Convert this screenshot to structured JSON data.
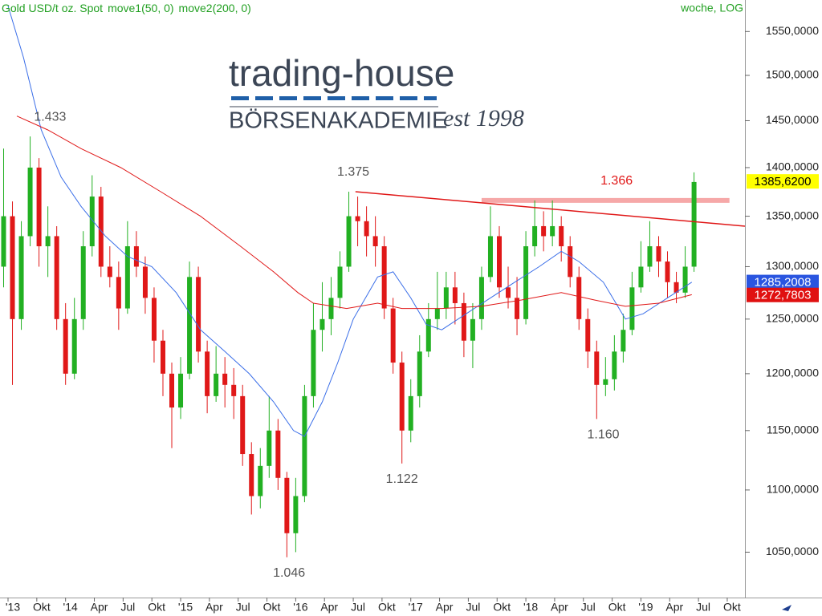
{
  "chart_data": {
    "type": "candlestick",
    "title": "Gold USD/t oz. Spot",
    "indicators": [
      "move1(50, 0)",
      "move2(200, 0)"
    ],
    "interval_label": "woche, LOG",
    "log_scale": true,
    "up_color": "#22b022",
    "down_color": "#e01818",
    "ylim": [
      1018,
      1587
    ],
    "yticks": [
      {
        "value": 1050,
        "label": "1050,0000"
      },
      {
        "value": 1100,
        "label": "1100,0000"
      },
      {
        "value": 1150,
        "label": "1150,0000"
      },
      {
        "value": 1200,
        "label": "1200,0000"
      },
      {
        "value": 1250,
        "label": "1250,0000"
      },
      {
        "value": 1300,
        "label": "1300,0000"
      },
      {
        "value": 1350,
        "label": "1350,0000"
      },
      {
        "value": 1400,
        "label": "1400,0000"
      },
      {
        "value": 1450,
        "label": "1450,0000"
      },
      {
        "value": 1500,
        "label": "1500,0000"
      },
      {
        "value": 1550,
        "label": "1550,0000"
      }
    ],
    "xlim": [
      -3.63,
      333
    ],
    "xticks": [
      {
        "value": 0,
        "label": "'13"
      },
      {
        "value": 13,
        "label": "Okt"
      },
      {
        "value": 26,
        "label": "'14"
      },
      {
        "value": 39,
        "label": "Apr"
      },
      {
        "value": 52,
        "label": "Jul"
      },
      {
        "value": 65,
        "label": "Okt"
      },
      {
        "value": 78,
        "label": "'15"
      },
      {
        "value": 91,
        "label": "Apr"
      },
      {
        "value": 104,
        "label": "Jul"
      },
      {
        "value": 117,
        "label": "Okt"
      },
      {
        "value": 130,
        "label": "'16"
      },
      {
        "value": 143,
        "label": "Apr"
      },
      {
        "value": 156,
        "label": "Jul"
      },
      {
        "value": 169,
        "label": "Okt"
      },
      {
        "value": 182,
        "label": "'17"
      },
      {
        "value": 195,
        "label": "Apr"
      },
      {
        "value": 208,
        "label": "Jul"
      },
      {
        "value": 221,
        "label": "Okt"
      },
      {
        "value": 234,
        "label": "'18"
      },
      {
        "value": 247,
        "label": "Apr"
      },
      {
        "value": 260,
        "label": "Jul"
      },
      {
        "value": 273,
        "label": "Okt"
      },
      {
        "value": 286,
        "label": "'19"
      },
      {
        "value": 299,
        "label": "Apr"
      },
      {
        "value": 312,
        "label": "Jul"
      },
      {
        "value": 325,
        "label": "Okt"
      }
    ],
    "x": [
      -2,
      2,
      6,
      10,
      14,
      18,
      22,
      26,
      30,
      34,
      38,
      42,
      46,
      50,
      54,
      58,
      62,
      66,
      70,
      74,
      78,
      82,
      86,
      90,
      94,
      98,
      102,
      106,
      110,
      114,
      118,
      122,
      126,
      130,
      134,
      138,
      142,
      146,
      150,
      154,
      158,
      162,
      166,
      170,
      174,
      178,
      182,
      186,
      190,
      194,
      198,
      202,
      206,
      210,
      214,
      218,
      222,
      226,
      230,
      234,
      238,
      242,
      246,
      250,
      254,
      258,
      262,
      266,
      270,
      274,
      278,
      282,
      286,
      290,
      294,
      298,
      302,
      306,
      310
    ],
    "open": [
      1300,
      1350,
      1250,
      1330,
      1400,
      1320,
      1330,
      1250,
      1200,
      1250,
      1320,
      1370,
      1300,
      1290,
      1260,
      1320,
      1300,
      1270,
      1230,
      1200,
      1170,
      1200,
      1290,
      1220,
      1180,
      1200,
      1190,
      1180,
      1130,
      1095,
      1120,
      1150,
      1110,
      1065,
      1095,
      1180,
      1240,
      1250,
      1270,
      1300,
      1350,
      1345,
      1330,
      1320,
      1260,
      1210,
      1150,
      1180,
      1220,
      1250,
      1260,
      1280,
      1265,
      1230,
      1250,
      1290,
      1330,
      1280,
      1270,
      1250,
      1320,
      1340,
      1330,
      1340,
      1320,
      1290,
      1250,
      1220,
      1190,
      1195,
      1220,
      1240,
      1280,
      1300,
      1320,
      1305,
      1285,
      1275,
      1300
    ],
    "high": [
      1420,
      1365,
      1345,
      1433,
      1410,
      1360,
      1340,
      1265,
      1270,
      1335,
      1392,
      1380,
      1320,
      1305,
      1345,
      1335,
      1310,
      1280,
      1240,
      1210,
      1215,
      1305,
      1300,
      1230,
      1225,
      1215,
      1205,
      1190,
      1140,
      1135,
      1180,
      1160,
      1115,
      1110,
      1190,
      1265,
      1285,
      1290,
      1315,
      1375,
      1370,
      1360,
      1350,
      1330,
      1270,
      1220,
      1195,
      1235,
      1265,
      1295,
      1295,
      1295,
      1275,
      1265,
      1300,
      1360,
      1340,
      1300,
      1290,
      1335,
      1366,
      1355,
      1366,
      1350,
      1330,
      1300,
      1260,
      1230,
      1215,
      1235,
      1255,
      1295,
      1325,
      1345,
      1330,
      1315,
      1295,
      1320,
      1395
    ],
    "low": [
      1280,
      1190,
      1240,
      1320,
      1300,
      1290,
      1240,
      1190,
      1195,
      1240,
      1310,
      1290,
      1280,
      1240,
      1255,
      1290,
      1255,
      1210,
      1180,
      1135,
      1160,
      1195,
      1210,
      1165,
      1175,
      1170,
      1160,
      1120,
      1080,
      1085,
      1110,
      1100,
      1046,
      1050,
      1090,
      1170,
      1220,
      1235,
      1260,
      1295,
      1320,
      1310,
      1300,
      1250,
      1200,
      1122,
      1140,
      1170,
      1215,
      1240,
      1250,
      1245,
      1215,
      1205,
      1240,
      1285,
      1270,
      1260,
      1235,
      1245,
      1310,
      1315,
      1320,
      1305,
      1280,
      1240,
      1205,
      1160,
      1180,
      1185,
      1210,
      1235,
      1275,
      1295,
      1290,
      1270,
      1265,
      1270,
      1295
    ],
    "close": [
      1350,
      1250,
      1330,
      1400,
      1320,
      1330,
      1250,
      1200,
      1250,
      1320,
      1370,
      1300,
      1290,
      1260,
      1320,
      1300,
      1270,
      1230,
      1200,
      1170,
      1200,
      1290,
      1220,
      1180,
      1200,
      1190,
      1180,
      1130,
      1095,
      1120,
      1150,
      1110,
      1065,
      1095,
      1180,
      1240,
      1250,
      1270,
      1300,
      1350,
      1345,
      1330,
      1320,
      1260,
      1210,
      1150,
      1180,
      1220,
      1250,
      1260,
      1280,
      1265,
      1230,
      1250,
      1290,
      1330,
      1280,
      1270,
      1250,
      1320,
      1340,
      1330,
      1340,
      1320,
      1290,
      1250,
      1220,
      1190,
      1195,
      1220,
      1240,
      1280,
      1300,
      1320,
      1305,
      1285,
      1275,
      1300,
      1385
    ],
    "lines": [
      {
        "name": "move1(50, 0)",
        "color": "#3a6ee8",
        "x": [
          0,
          7,
          15,
          24,
          33,
          44,
          54,
          65,
          76,
          87,
          98,
          109,
          120,
          129,
          134,
          142,
          149,
          156,
          167,
          174,
          182,
          189,
          196,
          207,
          218,
          229,
          240,
          250,
          258,
          269,
          279,
          287,
          298,
          309
        ],
        "values": [
          1580,
          1520,
          1440,
          1390,
          1360,
          1330,
          1310,
          1300,
          1275,
          1240,
          1220,
          1200,
          1175,
          1150,
          1145,
          1175,
          1210,
          1250,
          1290,
          1295,
          1270,
          1245,
          1240,
          1255,
          1270,
          1285,
          1300,
          1315,
          1305,
          1285,
          1250,
          1255,
          1270,
          1285
        ]
      },
      {
        "name": "move2(200, 0)",
        "color": "#e01818",
        "x": [
          4,
          18,
          33,
          51,
          69,
          87,
          105,
          120,
          131,
          138,
          153,
          167,
          178,
          196,
          214,
          232,
          250,
          265,
          279,
          294,
          309
        ],
        "values": [
          1455,
          1440,
          1420,
          1400,
          1375,
          1350,
          1320,
          1295,
          1275,
          1265,
          1260,
          1265,
          1260,
          1260,
          1262,
          1268,
          1275,
          1268,
          1262,
          1265,
          1273
        ]
      }
    ],
    "trendline": {
      "x": [
        157,
        333
      ],
      "values": [
        1375,
        1340
      ],
      "color": "#e01818"
    },
    "level": {
      "x": [
        214,
        326
      ],
      "value": 1366,
      "color": "#f6a8a8"
    },
    "annotations": [
      {
        "label": "1.433",
        "value": 1433,
        "x": 19,
        "position": "above"
      },
      {
        "label": "1.375",
        "value": 1375,
        "x": 156,
        "position": "above"
      },
      {
        "label": "1.366",
        "value": 1366,
        "x": 275,
        "position": "above",
        "color": "#e01818"
      },
      {
        "label": "1.046",
        "value": 1046,
        "x": 127,
        "position": "below"
      },
      {
        "label": "1.122",
        "value": 1122,
        "x": 178,
        "position": "below"
      },
      {
        "label": "1.160",
        "value": 1160,
        "x": 269,
        "position": "below"
      }
    ],
    "last_values": [
      {
        "value": 1385.62,
        "label": "1385,6200",
        "color": "#ffff00",
        "text_color": "#000000"
      },
      {
        "value": 1285.2008,
        "label": "1285,2008",
        "color": "#2a55e0",
        "text_color": "#ffffff"
      },
      {
        "value": 1272.7803,
        "label": "1272,7803",
        "color": "#e01010",
        "text_color": "#ffffff"
      }
    ]
  },
  "logo": {
    "brand": "trading-house",
    "subtitle": "BÖRSENAKADEMIE",
    "est": "est 1998"
  }
}
